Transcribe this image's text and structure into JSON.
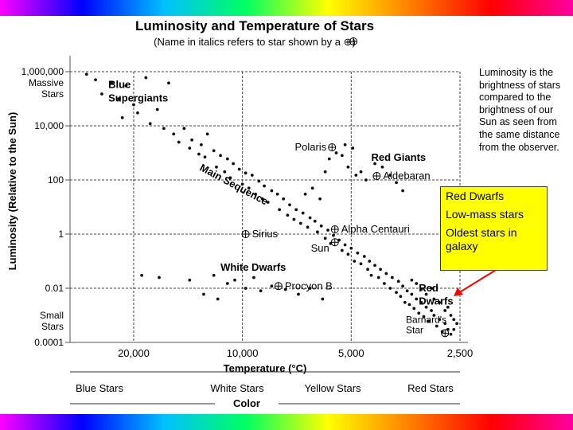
{
  "chart_data": {
    "type": "scatter",
    "title": "Luminosity and Temperature of Stars",
    "subtitle": "(Name in italics refers to star shown by a ⊕)",
    "ylabel": "Luminosity (Relative to the Sun)",
    "xlabel": "Temperature (°C)",
    "x_scale": "log",
    "y_scale": "log",
    "xlim": [
      30000,
      2500
    ],
    "ylim": [
      0.0001,
      1000000
    ],
    "x_ticks": [
      "20,000",
      "10,000",
      "5,000",
      "2,500"
    ],
    "x_tick_values": [
      20000,
      10000,
      5000,
      2500
    ],
    "y_ticks": [
      "1,000,000",
      "10,000",
      "100",
      "1",
      "0.01",
      "0.0001"
    ],
    "y_tick_values": [
      1000000,
      10000,
      100,
      1,
      0.01,
      0.0001
    ],
    "y_extremes": {
      "top": [
        "Massive",
        "Stars"
      ],
      "bottom": [
        "Small",
        "Stars"
      ]
    },
    "grid": true,
    "color_axis": {
      "labels": [
        "Blue Stars",
        "White Stars",
        "Yellow Stars",
        "Red Stars"
      ],
      "title": "Color"
    },
    "region_labels": [
      {
        "text": "Blue",
        "T": 23500,
        "L": 250000
      },
      {
        "text": "Supergiants",
        "T": 23500,
        "L": 80000
      },
      {
        "text": "Red Giants",
        "T": 4400,
        "L": 500
      },
      {
        "text": "Main Sequence",
        "T": 10500,
        "L": 120
      },
      {
        "text": "White Dwarfs",
        "T": 11500,
        "L": 0.045
      },
      {
        "text": "Red",
        "T": 3250,
        "L": 0.0075
      },
      {
        "text": "Dwarfs",
        "T": 3250,
        "L": 0.0025
      }
    ],
    "named_stars": [
      {
        "name": "Polaris",
        "T": 5650,
        "L": 1600
      },
      {
        "name": "Aldebaran",
        "T": 4250,
        "L": 140
      },
      {
        "name": "Alpha Centauri",
        "T": 5550,
        "L": 1.5
      },
      {
        "name": "Sun",
        "T": 5550,
        "L": 0.5
      },
      {
        "name": "Sirius",
        "T": 9800,
        "L": 1.0
      },
      {
        "name": "Procyon B",
        "T": 7950,
        "L": 0.012
      },
      {
        "name": "Barnard's",
        "T": 3000,
        "L": 0.0006
      },
      {
        "name": "Star",
        "T": 3000,
        "L": 0.00025
      }
    ],
    "series": [
      {
        "values": [
          [
            27000,
            800000
          ],
          [
            25500,
            500000
          ],
          [
            23000,
            400000
          ],
          [
            21000,
            300000
          ],
          [
            18500,
            600000
          ],
          [
            16000,
            380000
          ],
          [
            24500,
            150000
          ],
          [
            22000,
            100000
          ],
          [
            20000,
            60000
          ],
          [
            19500,
            30000
          ],
          [
            21500,
            20000
          ],
          [
            18000,
            12000
          ],
          [
            17200,
            40000
          ],
          [
            16500,
            8000
          ],
          [
            15500,
            5000
          ],
          [
            14500,
            8000
          ],
          [
            13800,
            3000
          ],
          [
            13000,
            2000
          ],
          [
            12500,
            5000
          ],
          [
            12000,
            1200
          ],
          [
            11500,
            800
          ],
          [
            11000,
            600
          ],
          [
            10600,
            400
          ],
          [
            10200,
            250
          ],
          [
            9800,
            180
          ],
          [
            9400,
            150
          ],
          [
            9000,
            90
          ],
          [
            8700,
            60
          ],
          [
            8300,
            40
          ],
          [
            8000,
            30
          ],
          [
            7700,
            20
          ],
          [
            7400,
            12
          ],
          [
            7100,
            8
          ],
          [
            6800,
            6
          ],
          [
            6500,
            4
          ],
          [
            6300,
            3
          ],
          [
            6050,
            2
          ],
          [
            5800,
            1.4
          ],
          [
            5600,
            0.9
          ],
          [
            5400,
            0.6
          ],
          [
            5200,
            0.4
          ],
          [
            5000,
            0.3
          ],
          [
            4800,
            0.2
          ],
          [
            4600,
            0.15
          ],
          [
            4450,
            0.1
          ],
          [
            4300,
            0.07
          ],
          [
            4150,
            0.05
          ],
          [
            4000,
            0.035
          ],
          [
            3850,
            0.025
          ],
          [
            3700,
            0.018
          ],
          [
            3600,
            0.012
          ],
          [
            3500,
            0.008
          ],
          [
            3400,
            0.006
          ],
          [
            3300,
            0.004
          ],
          [
            3200,
            0.003
          ],
          [
            3100,
            0.002
          ],
          [
            3000,
            0.0015
          ],
          [
            2950,
            0.001
          ],
          [
            2850,
            0.0007
          ],
          [
            2750,
            0.0005
          ],
          [
            2700,
            0.0003
          ],
          [
            2650,
            0.0002
          ],
          [
            15000,
            2500
          ],
          [
            14000,
            1500
          ],
          [
            13200,
            900
          ],
          [
            12700,
            700
          ],
          [
            11800,
            300
          ],
          [
            11200,
            200
          ],
          [
            10800,
            120
          ],
          [
            10000,
            70
          ],
          [
            9600,
            50
          ],
          [
            9200,
            30
          ],
          [
            8800,
            20
          ],
          [
            8500,
            15
          ],
          [
            7900,
            8
          ],
          [
            7500,
            5
          ],
          [
            7200,
            3.5
          ],
          [
            6900,
            2.5
          ],
          [
            6600,
            1.8
          ],
          [
            6200,
            1.2
          ],
          [
            5900,
            0.7
          ],
          [
            5700,
            0.45
          ],
          [
            5300,
            0.25
          ],
          [
            5100,
            0.18
          ],
          [
            4900,
            0.1
          ],
          [
            4700,
            0.08
          ],
          [
            4500,
            0.05
          ],
          [
            4400,
            0.03
          ],
          [
            4200,
            0.025
          ],
          [
            4050,
            0.015
          ],
          [
            3900,
            0.01
          ],
          [
            3750,
            0.007
          ],
          [
            3650,
            0.005
          ],
          [
            3550,
            0.003
          ],
          [
            3450,
            0.0025
          ],
          [
            3350,
            0.0018
          ],
          [
            3250,
            0.0012
          ],
          [
            3150,
            0.0009
          ],
          [
            3050,
            0.0006
          ],
          [
            2900,
            0.0004
          ],
          [
            2800,
            0.00025
          ],
          [
            2600,
            0.0003
          ],
          [
            6700,
            30
          ],
          [
            6400,
            50
          ],
          [
            6100,
            20
          ],
          [
            5900,
            200
          ],
          [
            5750,
            600
          ],
          [
            5500,
            1000
          ],
          [
            5300,
            800
          ],
          [
            5100,
            300
          ],
          [
            4850,
            150
          ],
          [
            4700,
            200
          ],
          [
            4550,
            100
          ],
          [
            4300,
            400
          ],
          [
            4100,
            300
          ],
          [
            3900,
            150
          ],
          [
            3750,
            80
          ],
          [
            3600,
            40
          ],
          [
            5200,
            2000
          ],
          [
            4950,
            1500
          ],
          [
            3400,
            0.02
          ],
          [
            3300,
            0.015
          ],
          [
            3200,
            0.009
          ],
          [
            3100,
            0.006
          ],
          [
            2950,
            0.004
          ],
          [
            2850,
            0.003
          ],
          [
            2750,
            0.0015
          ],
          [
            2650,
            0.001
          ],
          [
            2600,
            0.0007
          ],
          [
            2550,
            0.0005
          ],
          [
            2700,
            0.002
          ],
          [
            3000,
            0.01
          ],
          [
            19000,
            0.03
          ],
          [
            17000,
            0.025
          ],
          [
            14000,
            0.02
          ],
          [
            12000,
            0.03
          ],
          [
            11000,
            0.015
          ],
          [
            10500,
            0.02
          ],
          [
            9800,
            0.01
          ],
          [
            9300,
            0.025
          ],
          [
            8900,
            0.008
          ],
          [
            8300,
            0.012
          ],
          [
            7600,
            0.009
          ],
          [
            7000,
            0.006
          ],
          [
            6500,
            0.01
          ],
          [
            6000,
            0.004
          ],
          [
            12800,
            0.006
          ],
          [
            11700,
            0.004
          ]
        ]
      }
    ]
  },
  "side_note": [
    "Luminosity is the",
    "brightness of stars",
    "compared to the",
    "brightness of our",
    "Sun as seen from",
    "the same distance",
    "from the observer."
  ],
  "callout": {
    "lines": [
      "Red Dwarfs",
      "Low-mass stars",
      "Oldest stars in galaxy"
    ],
    "arrow_color": "#ff0000",
    "background": "#ffff00"
  },
  "colors": {
    "grid": "#444444",
    "dot": "#111111",
    "rainbow": [
      "#ff00ff",
      "#0000ff",
      "#00c0ff",
      "#00ff60",
      "#ffff00",
      "#ff8000",
      "#ff0000"
    ]
  }
}
